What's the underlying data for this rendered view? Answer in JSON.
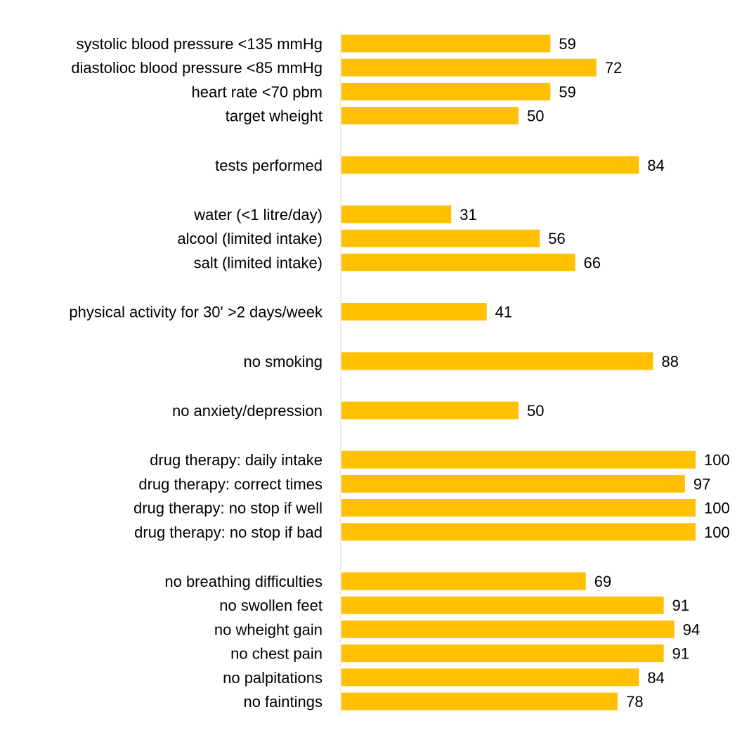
{
  "chart_data": {
    "type": "bar",
    "orientation": "horizontal",
    "title": "",
    "xlabel": "",
    "ylabel": "",
    "xlim": [
      0,
      100
    ],
    "grid": false,
    "legend": "none",
    "bar_color": "#FFC000",
    "data_labels": true,
    "categories": [
      "systolic blood pressure <135 mmHg",
      "diastolioc blood pressure <85 mmHg",
      "heart rate <70 pbm",
      "target wheight",
      "tests performed",
      "water (<1 litre/day)",
      "alcool (limited intake)",
      "salt (limited intake)",
      "physical activity for 30' >2 days/week",
      "no smoking",
      "no anxiety/depression",
      "drug therapy: daily intake",
      "drug therapy: correct times",
      "drug therapy: no stop if well",
      "drug therapy: no stop if bad",
      "no breathing difficulties",
      "no swollen feet",
      "no wheight gain",
      "no chest pain",
      "no palpitations",
      "no faintings"
    ],
    "values": [
      59,
      72,
      59,
      50,
      84,
      31,
      56,
      66,
      41,
      88,
      50,
      100,
      97,
      100,
      100,
      69,
      91,
      94,
      91,
      84,
      78
    ],
    "groups": [
      4,
      1,
      3,
      1,
      1,
      1,
      4,
      6
    ]
  }
}
